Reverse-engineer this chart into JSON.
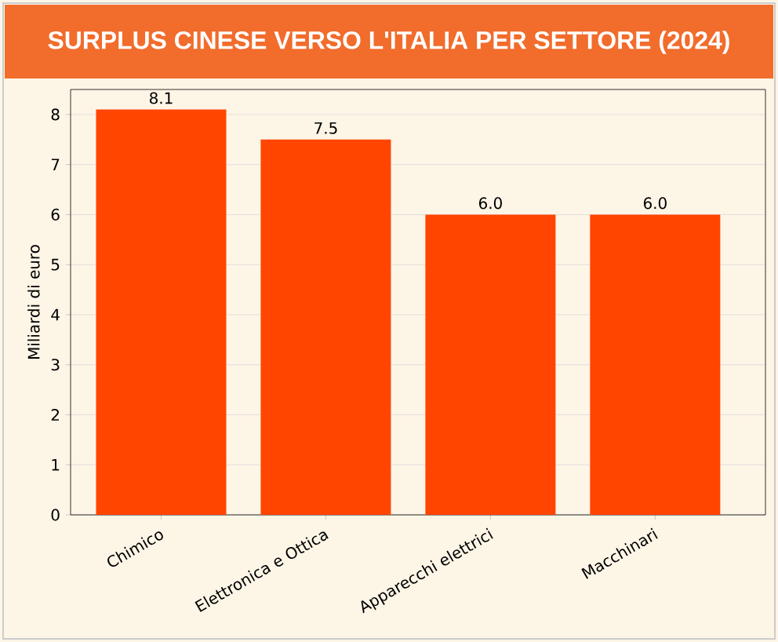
{
  "chart_data": {
    "type": "bar",
    "title": "SURPLUS CINESE VERSO L'ITALIA PER SETTORE (2024)",
    "ylabel": "Miliardi di euro",
    "categories": [
      "Chimico",
      "Elettronica e Ottica",
      "Apparecchi elettrici",
      "Macchinari"
    ],
    "values": [
      8.1,
      7.5,
      6.0,
      6.0
    ],
    "value_labels": [
      "8.1",
      "7.5",
      "6.0",
      "6.0"
    ],
    "color": "#ff4500",
    "ylim": [
      0,
      8.5
    ],
    "yticks": [
      0,
      1,
      2,
      3,
      4,
      5,
      6,
      7,
      8
    ],
    "grid": "y"
  }
}
